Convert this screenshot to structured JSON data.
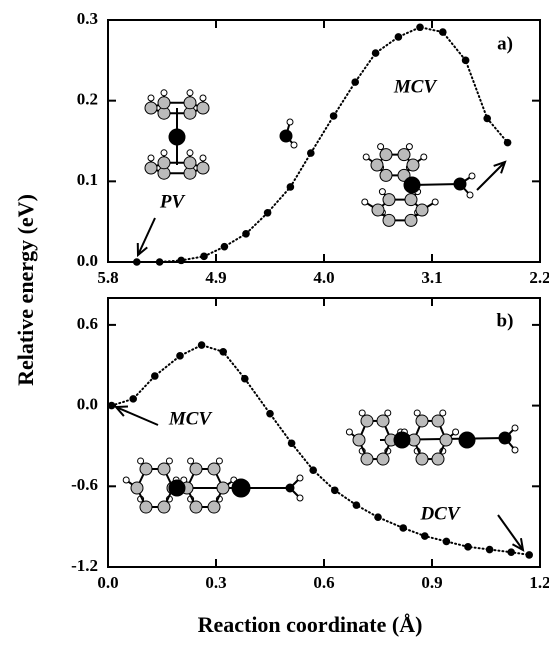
{
  "ylabel": "Relative energy (eV)",
  "xlabel": "Reaction coordinate (Å)",
  "chart_data": [
    {
      "type": "line",
      "annotations": [
        "a)",
        "PV",
        "MCV"
      ],
      "xlim": [
        5.8,
        2.2
      ],
      "xticks": [
        5.8,
        4.9,
        {
          "value": 4,
          "label": "4.0"
        },
        3.1,
        2.2
      ],
      "ylim": [
        0,
        0.3
      ],
      "yticks": [
        {
          "value": 0,
          "label": "0.0"
        },
        0.1,
        0.2,
        0.3
      ],
      "color": "#000000",
      "x": [
        5.56,
        5.37,
        5.19,
        5.0,
        4.83,
        4.65,
        4.47,
        4.28,
        4.11,
        3.92,
        3.74,
        3.57,
        3.38,
        3.2,
        3.01,
        2.82,
        2.64,
        2.47
      ],
      "values": [
        0.0,
        0.0,
        0.002,
        0.007,
        0.019,
        0.035,
        0.061,
        0.093,
        0.135,
        0.181,
        0.223,
        0.259,
        0.279,
        0.291,
        0.285,
        0.25,
        0.178,
        0.148
      ]
    },
    {
      "type": "line",
      "annotations": [
        "b)",
        "MCV",
        "DCV"
      ],
      "xlim": [
        0,
        1.2
      ],
      "xticks": [
        {
          "value": 0,
          "label": "0.0"
        },
        0.3,
        0.6,
        0.9,
        1.2
      ],
      "ylim": [
        -1.2,
        0.8
      ],
      "yticks": [
        0.6,
        {
          "value": 0,
          "label": "0.0"
        },
        -0.6,
        -1.2
      ],
      "color": "#000000",
      "x": [
        0.01,
        0.07,
        0.13,
        0.2,
        0.26,
        0.32,
        0.38,
        0.45,
        0.51,
        0.57,
        0.63,
        0.69,
        0.75,
        0.82,
        0.88,
        0.94,
        1.0,
        1.06,
        1.12,
        1.17
      ],
      "values": [
        0.0,
        0.05,
        0.22,
        0.37,
        0.45,
        0.4,
        0.2,
        -0.06,
        -0.28,
        -0.48,
        -0.63,
        -0.74,
        -0.83,
        -0.91,
        -0.97,
        -1.01,
        -1.05,
        -1.07,
        -1.09,
        -1.11
      ]
    }
  ]
}
